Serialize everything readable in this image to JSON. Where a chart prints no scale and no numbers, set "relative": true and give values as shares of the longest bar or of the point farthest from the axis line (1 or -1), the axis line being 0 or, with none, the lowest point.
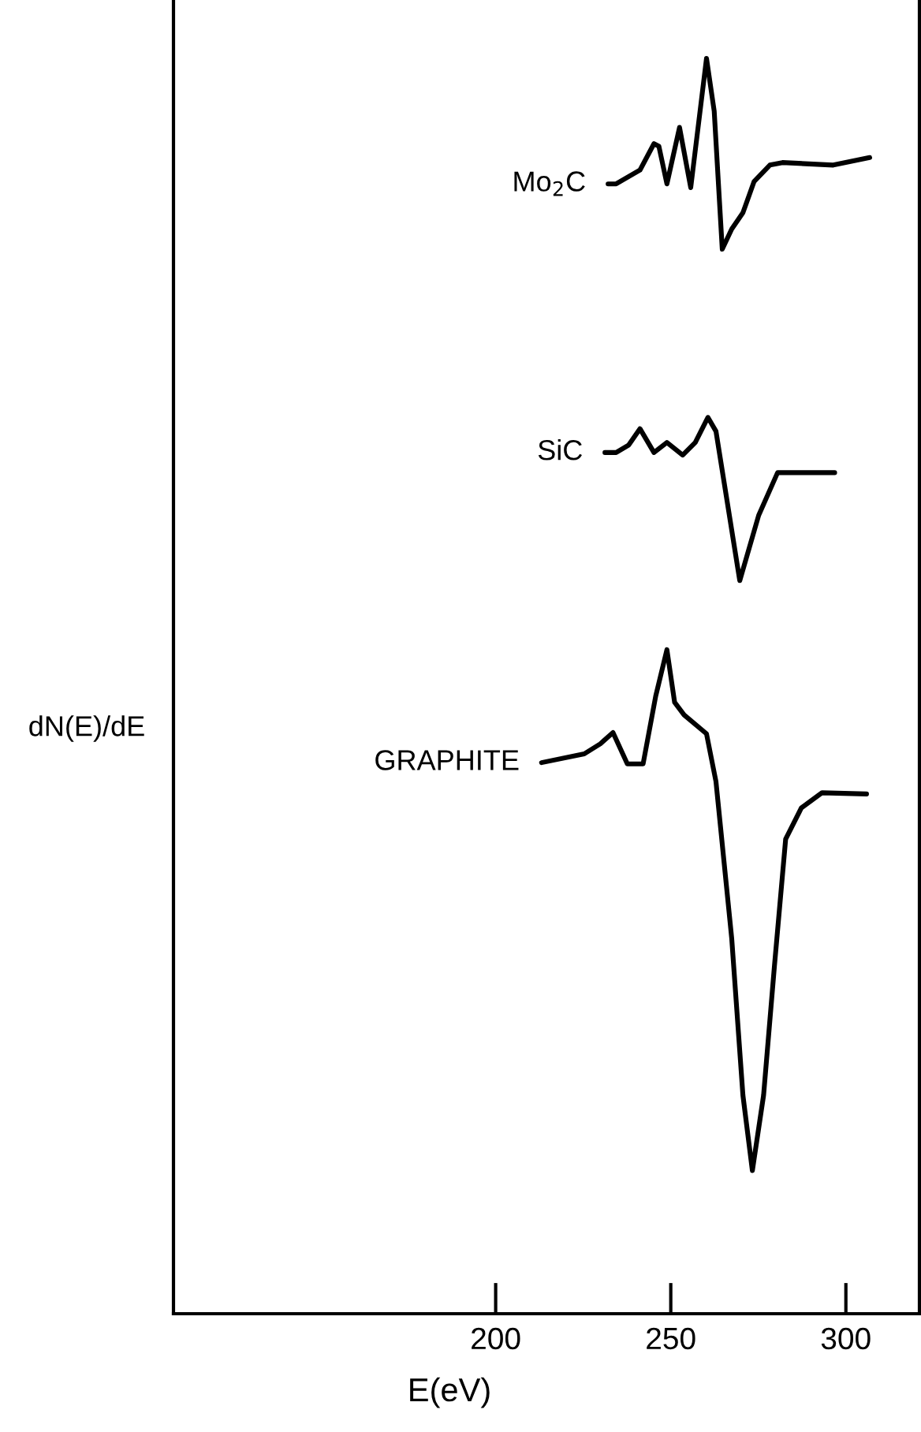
{
  "chart_data": {
    "type": "line",
    "relative": true,
    "xlabel": "E(eV)",
    "ylabel": "dN(E)/dE",
    "xlim": [
      108,
      321
    ],
    "xticks": [
      200,
      250,
      300
    ],
    "grid": false,
    "legend": false,
    "marker": "none",
    "line_style": "solid",
    "series": [
      {
        "name": "Mo$_{2}$C",
        "color": "#000000",
        "x": [
          232.1,
          234.4,
          241.2,
          245.2,
          246.6,
          248.9,
          252.5,
          255.7,
          260.2,
          262.4,
          264.7,
          267.4,
          270.6,
          273.8,
          278.3,
          281.9,
          296.4,
          306.8
        ],
        "values": [
          0.9,
          0.9,
          0.911,
          0.932,
          0.93,
          0.9,
          0.945,
          0.897,
          1.0,
          0.958,
          0.848,
          0.864,
          0.877,
          0.902,
          0.915,
          0.917,
          0.915,
          0.921
        ]
      },
      {
        "name": "SiC",
        "color": "#000000",
        "x": [
          231.2,
          234.4,
          238.0,
          241.2,
          245.2,
          248.9,
          253.4,
          257.0,
          260.6,
          262.9,
          269.7,
          275.1,
          280.5,
          296.8
        ],
        "values": [
          0.686,
          0.686,
          0.692,
          0.705,
          0.686,
          0.694,
          0.684,
          0.694,
          0.714,
          0.703,
          0.584,
          0.636,
          0.67,
          0.67
        ]
      },
      {
        "name": "GRAPHITE",
        "color": "#000000",
        "x": [
          213.1,
          225.3,
          229.9,
          233.5,
          237.6,
          242.1,
          245.7,
          248.9,
          251.1,
          253.8,
          260.2,
          262.9,
          267.4,
          270.6,
          273.3,
          276.5,
          279.6,
          282.8,
          287.3,
          293.2,
          305.9
        ],
        "values": [
          0.439,
          0.446,
          0.454,
          0.463,
          0.438,
          0.438,
          0.492,
          0.529,
          0.487,
          0.477,
          0.462,
          0.424,
          0.299,
          0.174,
          0.114,
          0.174,
          0.277,
          0.378,
          0.403,
          0.415,
          0.414
        ]
      }
    ]
  }
}
